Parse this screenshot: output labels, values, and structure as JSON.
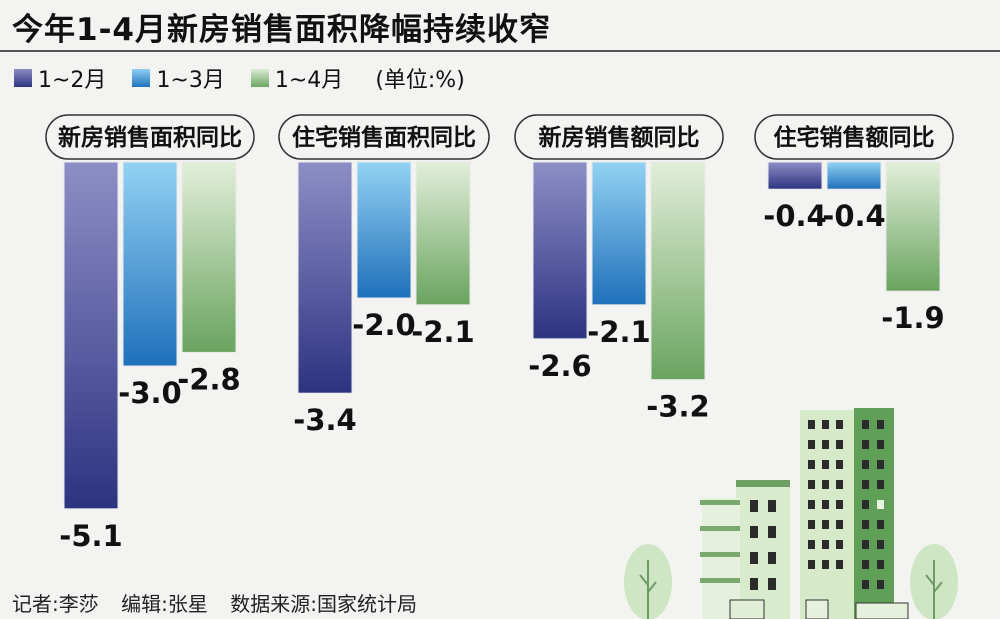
{
  "chart_data": {
    "type": "bar",
    "title": "今年1-4月新房销售面积降幅持续收窄",
    "unit_label": "(单位:%)",
    "categories": [
      "新房销售面积同比",
      "住宅销售面积同比",
      "新房销售额同比",
      "住宅销售额同比"
    ],
    "series": [
      {
        "name": "1~2月",
        "values": [
          -5.1,
          -3.4,
          -2.6,
          -0.4
        ],
        "color": "#3a3f8a"
      },
      {
        "name": "1~3月",
        "values": [
          -3.0,
          -2.0,
          -2.1,
          -0.4
        ],
        "color": "#2f86cc"
      },
      {
        "name": "1~4月",
        "values": [
          -2.8,
          -2.1,
          -3.2,
          -1.9
        ],
        "color": "#7fb377"
      }
    ],
    "ylim": [
      -5.5,
      0
    ]
  },
  "credits": {
    "reporter": "记者:李莎",
    "editor": "编辑:张星",
    "source": "数据来源:国家统计局"
  }
}
